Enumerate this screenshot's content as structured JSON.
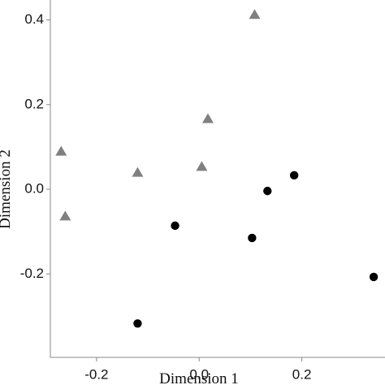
{
  "chart_data": {
    "type": "scatter",
    "xlabel": "Dimension 1",
    "ylabel": "Dimension 2",
    "xlim": [
      -0.29,
      0.362
    ],
    "ylim": [
      -0.397,
      0.447
    ],
    "xticks": [
      -0.2,
      {
        "value": 0,
        "label": "0.0"
      },
      0.2
    ],
    "yticks": [
      -0.2,
      {
        "value": 0,
        "label": "0.0"
      },
      0.2,
      0.4
    ],
    "series": [
      {
        "color": "#808080",
        "marker": "triangle",
        "x": [
          -0.269,
          -0.261,
          -0.12,
          0.005,
          0.017,
          0.108
        ],
        "y": [
          0.09,
          -0.063,
          0.04,
          0.054,
          0.167,
          0.413
        ]
      },
      {
        "color": "#000000",
        "marker": "circle",
        "x": [
          -0.047,
          0.133,
          0.185,
          0.103,
          0.34,
          -0.12
        ],
        "y": [
          -0.086,
          -0.004,
          0.033,
          -0.115,
          -0.207,
          -0.317
        ]
      }
    ]
  }
}
